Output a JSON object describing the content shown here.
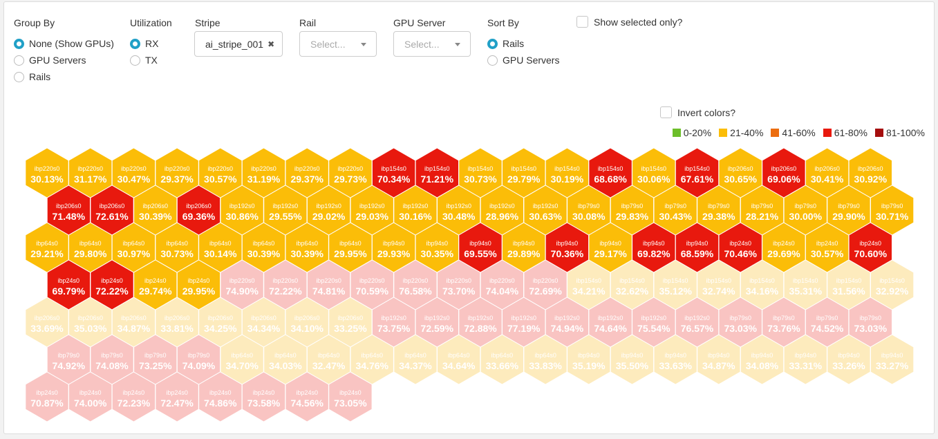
{
  "controls": {
    "group_by": {
      "title": "Group By",
      "options": [
        "None (Show GPUs)",
        "GPU Servers",
        "Rails"
      ],
      "selected": "None (Show GPUs)"
    },
    "utilization": {
      "title": "Utilization",
      "options": [
        "RX",
        "TX"
      ],
      "selected": "RX"
    },
    "stripe": {
      "title": "Stripe",
      "value": "ai_stripe_001",
      "clear_icon": "close-icon"
    },
    "rail": {
      "title": "Rail",
      "placeholder": "Select..."
    },
    "gpu_server": {
      "title": "GPU Server",
      "placeholder": "Select..."
    },
    "sort_by": {
      "title": "Sort By",
      "options": [
        "Rails",
        "GPU Servers"
      ],
      "selected": "Rails"
    },
    "show_selected_only": {
      "label": "Show selected only?",
      "checked": false
    },
    "invert_colors": {
      "label": "Invert colors?",
      "checked": false
    }
  },
  "legend": [
    {
      "label": "0-20%",
      "color": "#6cbe2a"
    },
    {
      "label": "21-40%",
      "color": "#fbbd08"
    },
    {
      "label": "41-60%",
      "color": "#ec6d0f"
    },
    {
      "label": "61-80%",
      "color": "#e8190e"
    },
    {
      "label": "81-100%",
      "color": "#a50e0e"
    }
  ],
  "hexmap": {
    "rows": [
      {
        "offset": 0,
        "cells": [
          {
            "name": "ibp220s0",
            "value": "30.13%",
            "bucket": 1,
            "faded": false
          },
          {
            "name": "ibp220s0",
            "value": "31.17%",
            "bucket": 1,
            "faded": false
          },
          {
            "name": "ibp220s0",
            "value": "30.47%",
            "bucket": 1,
            "faded": false
          },
          {
            "name": "ibp220s0",
            "value": "29.37%",
            "bucket": 1,
            "faded": false
          },
          {
            "name": "ibp220s0",
            "value": "30.57%",
            "bucket": 1,
            "faded": false
          },
          {
            "name": "ibp220s0",
            "value": "31.19%",
            "bucket": 1,
            "faded": false
          },
          {
            "name": "ibp220s0",
            "value": "29.37%",
            "bucket": 1,
            "faded": false
          },
          {
            "name": "ibp220s0",
            "value": "29.73%",
            "bucket": 1,
            "faded": false
          },
          {
            "name": "ibp154s0",
            "value": "70.34%",
            "bucket": 3,
            "faded": false
          },
          {
            "name": "ibp154s0",
            "value": "71.21%",
            "bucket": 3,
            "faded": false
          },
          {
            "name": "ibp154s0",
            "value": "30.73%",
            "bucket": 1,
            "faded": false
          },
          {
            "name": "ibp154s0",
            "value": "29.79%",
            "bucket": 1,
            "faded": false
          },
          {
            "name": "ibp154s0",
            "value": "30.19%",
            "bucket": 1,
            "faded": false
          },
          {
            "name": "ibp154s0",
            "value": "68.68%",
            "bucket": 3,
            "faded": false
          },
          {
            "name": "ibp154s0",
            "value": "30.06%",
            "bucket": 1,
            "faded": false
          },
          {
            "name": "ibp154s0",
            "value": "67.61%",
            "bucket": 3,
            "faded": false
          },
          {
            "name": "ibp206s0",
            "value": "30.65%",
            "bucket": 1,
            "faded": false
          },
          {
            "name": "ibp206s0",
            "value": "69.06%",
            "bucket": 3,
            "faded": false
          },
          {
            "name": "ibp206s0",
            "value": "30.41%",
            "bucket": 1,
            "faded": false
          },
          {
            "name": "ibp206s0",
            "value": "30.92%",
            "bucket": 1,
            "faded": false
          }
        ]
      },
      {
        "offset": 1,
        "cells": [
          {
            "name": "ibp206s0",
            "value": "71.48%",
            "bucket": 3,
            "faded": false
          },
          {
            "name": "ibp206s0",
            "value": "72.61%",
            "bucket": 3,
            "faded": false
          },
          {
            "name": "ibp206s0",
            "value": "30.39%",
            "bucket": 1,
            "faded": false
          },
          {
            "name": "ibp206s0",
            "value": "69.36%",
            "bucket": 3,
            "faded": false
          },
          {
            "name": "ibp192s0",
            "value": "30.86%",
            "bucket": 1,
            "faded": false
          },
          {
            "name": "ibp192s0",
            "value": "29.55%",
            "bucket": 1,
            "faded": false
          },
          {
            "name": "ibp192s0",
            "value": "29.02%",
            "bucket": 1,
            "faded": false
          },
          {
            "name": "ibp192s0",
            "value": "29.03%",
            "bucket": 1,
            "faded": false
          },
          {
            "name": "ibp192s0",
            "value": "30.16%",
            "bucket": 1,
            "faded": false
          },
          {
            "name": "ibp192s0",
            "value": "30.48%",
            "bucket": 1,
            "faded": false
          },
          {
            "name": "ibp192s0",
            "value": "28.96%",
            "bucket": 1,
            "faded": false
          },
          {
            "name": "ibp192s0",
            "value": "30.63%",
            "bucket": 1,
            "faded": false
          },
          {
            "name": "ibp79s0",
            "value": "30.08%",
            "bucket": 1,
            "faded": false
          },
          {
            "name": "ibp79s0",
            "value": "29.83%",
            "bucket": 1,
            "faded": false
          },
          {
            "name": "ibp79s0",
            "value": "30.43%",
            "bucket": 1,
            "faded": false
          },
          {
            "name": "ibp79s0",
            "value": "29.38%",
            "bucket": 1,
            "faded": false
          },
          {
            "name": "ibp79s0",
            "value": "28.21%",
            "bucket": 1,
            "faded": false
          },
          {
            "name": "ibp79s0",
            "value": "30.00%",
            "bucket": 1,
            "faded": false
          },
          {
            "name": "ibp79s0",
            "value": "29.90%",
            "bucket": 1,
            "faded": false
          },
          {
            "name": "ibp79s0",
            "value": "30.71%",
            "bucket": 1,
            "faded": false
          }
        ]
      },
      {
        "offset": 0,
        "cells": [
          {
            "name": "ibp64s0",
            "value": "29.21%",
            "bucket": 1,
            "faded": false
          },
          {
            "name": "ibp64s0",
            "value": "29.80%",
            "bucket": 1,
            "faded": false
          },
          {
            "name": "ibp64s0",
            "value": "30.97%",
            "bucket": 1,
            "faded": false
          },
          {
            "name": "ibp64s0",
            "value": "30.73%",
            "bucket": 1,
            "faded": false
          },
          {
            "name": "ibp64s0",
            "value": "30.14%",
            "bucket": 1,
            "faded": false
          },
          {
            "name": "ibp64s0",
            "value": "30.39%",
            "bucket": 1,
            "faded": false
          },
          {
            "name": "ibp64s0",
            "value": "30.39%",
            "bucket": 1,
            "faded": false
          },
          {
            "name": "ibp64s0",
            "value": "29.95%",
            "bucket": 1,
            "faded": false
          },
          {
            "name": "ibp94s0",
            "value": "29.93%",
            "bucket": 1,
            "faded": false
          },
          {
            "name": "ibp94s0",
            "value": "30.35%",
            "bucket": 1,
            "faded": false
          },
          {
            "name": "ibp94s0",
            "value": "69.55%",
            "bucket": 3,
            "faded": false
          },
          {
            "name": "ibp94s0",
            "value": "29.89%",
            "bucket": 1,
            "faded": false
          },
          {
            "name": "ibp94s0",
            "value": "70.36%",
            "bucket": 3,
            "faded": false
          },
          {
            "name": "ibp94s0",
            "value": "29.17%",
            "bucket": 1,
            "faded": false
          },
          {
            "name": "ibp94s0",
            "value": "69.82%",
            "bucket": 3,
            "faded": false
          },
          {
            "name": "ibp94s0",
            "value": "68.59%",
            "bucket": 3,
            "faded": false
          },
          {
            "name": "ibp24s0",
            "value": "70.46%",
            "bucket": 3,
            "faded": false
          },
          {
            "name": "ibp24s0",
            "value": "29.69%",
            "bucket": 1,
            "faded": false
          },
          {
            "name": "ibp24s0",
            "value": "30.57%",
            "bucket": 1,
            "faded": false
          },
          {
            "name": "ibp24s0",
            "value": "70.60%",
            "bucket": 3,
            "faded": false
          }
        ]
      },
      {
        "offset": 1,
        "cells": [
          {
            "name": "ibp24s0",
            "value": "69.79%",
            "bucket": 3,
            "faded": false
          },
          {
            "name": "ibp24s0",
            "value": "72.22%",
            "bucket": 3,
            "faded": false
          },
          {
            "name": "ibp24s0",
            "value": "29.74%",
            "bucket": 1,
            "faded": false
          },
          {
            "name": "ibp24s0",
            "value": "29.95%",
            "bucket": 1,
            "faded": false
          },
          {
            "name": "ibp220s0",
            "value": "74.90%",
            "bucket": 3,
            "faded": true
          },
          {
            "name": "ibp220s0",
            "value": "72.22%",
            "bucket": 3,
            "faded": true
          },
          {
            "name": "ibp220s0",
            "value": "74.81%",
            "bucket": 3,
            "faded": true
          },
          {
            "name": "ibp220s0",
            "value": "70.59%",
            "bucket": 3,
            "faded": true
          },
          {
            "name": "ibp220s0",
            "value": "76.58%",
            "bucket": 3,
            "faded": true
          },
          {
            "name": "ibp220s0",
            "value": "73.70%",
            "bucket": 3,
            "faded": true
          },
          {
            "name": "ibp220s0",
            "value": "74.04%",
            "bucket": 3,
            "faded": true
          },
          {
            "name": "ibp220s0",
            "value": "72.69%",
            "bucket": 3,
            "faded": true
          },
          {
            "name": "ibp154s0",
            "value": "34.21%",
            "bucket": 1,
            "faded": true
          },
          {
            "name": "ibp154s0",
            "value": "32.62%",
            "bucket": 1,
            "faded": true
          },
          {
            "name": "ibp154s0",
            "value": "35.12%",
            "bucket": 1,
            "faded": true
          },
          {
            "name": "ibp154s0",
            "value": "32.74%",
            "bucket": 1,
            "faded": true
          },
          {
            "name": "ibp154s0",
            "value": "34.16%",
            "bucket": 1,
            "faded": true
          },
          {
            "name": "ibp154s0",
            "value": "35.31%",
            "bucket": 1,
            "faded": true
          },
          {
            "name": "ibp154s0",
            "value": "31.56%",
            "bucket": 1,
            "faded": true
          },
          {
            "name": "ibp154s0",
            "value": "32.92%",
            "bucket": 1,
            "faded": true
          }
        ]
      },
      {
        "offset": 0,
        "cells": [
          {
            "name": "ibp206s0",
            "value": "33.69%",
            "bucket": 1,
            "faded": true
          },
          {
            "name": "ibp206s0",
            "value": "35.03%",
            "bucket": 1,
            "faded": true
          },
          {
            "name": "ibp206s0",
            "value": "34.87%",
            "bucket": 1,
            "faded": true
          },
          {
            "name": "ibp206s0",
            "value": "33.81%",
            "bucket": 1,
            "faded": true
          },
          {
            "name": "ibp206s0",
            "value": "34.25%",
            "bucket": 1,
            "faded": true
          },
          {
            "name": "ibp206s0",
            "value": "34.34%",
            "bucket": 1,
            "faded": true
          },
          {
            "name": "ibp206s0",
            "value": "34.10%",
            "bucket": 1,
            "faded": true
          },
          {
            "name": "ibp206s0",
            "value": "33.25%",
            "bucket": 1,
            "faded": true
          },
          {
            "name": "ibp192s0",
            "value": "73.75%",
            "bucket": 3,
            "faded": true
          },
          {
            "name": "ibp192s0",
            "value": "72.59%",
            "bucket": 3,
            "faded": true
          },
          {
            "name": "ibp192s0",
            "value": "72.88%",
            "bucket": 3,
            "faded": true
          },
          {
            "name": "ibp192s0",
            "value": "77.19%",
            "bucket": 3,
            "faded": true
          },
          {
            "name": "ibp192s0",
            "value": "74.94%",
            "bucket": 3,
            "faded": true
          },
          {
            "name": "ibp192s0",
            "value": "74.64%",
            "bucket": 3,
            "faded": true
          },
          {
            "name": "ibp192s0",
            "value": "75.54%",
            "bucket": 3,
            "faded": true
          },
          {
            "name": "ibp192s0",
            "value": "76.57%",
            "bucket": 3,
            "faded": true
          },
          {
            "name": "ibp79s0",
            "value": "73.03%",
            "bucket": 3,
            "faded": true
          },
          {
            "name": "ibp79s0",
            "value": "73.76%",
            "bucket": 3,
            "faded": true
          },
          {
            "name": "ibp79s0",
            "value": "74.52%",
            "bucket": 3,
            "faded": true
          },
          {
            "name": "ibp79s0",
            "value": "73.03%",
            "bucket": 3,
            "faded": true
          }
        ]
      },
      {
        "offset": 1,
        "cells": [
          {
            "name": "ibp79s0",
            "value": "74.92%",
            "bucket": 3,
            "faded": true
          },
          {
            "name": "ibp79s0",
            "value": "74.08%",
            "bucket": 3,
            "faded": true
          },
          {
            "name": "ibp79s0",
            "value": "73.25%",
            "bucket": 3,
            "faded": true
          },
          {
            "name": "ibp79s0",
            "value": "74.09%",
            "bucket": 3,
            "faded": true
          },
          {
            "name": "ibp64s0",
            "value": "34.70%",
            "bucket": 1,
            "faded": true
          },
          {
            "name": "ibp64s0",
            "value": "34.03%",
            "bucket": 1,
            "faded": true
          },
          {
            "name": "ibp64s0",
            "value": "32.47%",
            "bucket": 1,
            "faded": true
          },
          {
            "name": "ibp64s0",
            "value": "34.76%",
            "bucket": 1,
            "faded": true
          },
          {
            "name": "ibp64s0",
            "value": "34.37%",
            "bucket": 1,
            "faded": true
          },
          {
            "name": "ibp64s0",
            "value": "34.64%",
            "bucket": 1,
            "faded": true
          },
          {
            "name": "ibp64s0",
            "value": "33.66%",
            "bucket": 1,
            "faded": true
          },
          {
            "name": "ibp64s0",
            "value": "33.83%",
            "bucket": 1,
            "faded": true
          },
          {
            "name": "ibp94s0",
            "value": "35.19%",
            "bucket": 1,
            "faded": true
          },
          {
            "name": "ibp94s0",
            "value": "35.50%",
            "bucket": 1,
            "faded": true
          },
          {
            "name": "ibp94s0",
            "value": "33.63%",
            "bucket": 1,
            "faded": true
          },
          {
            "name": "ibp94s0",
            "value": "34.87%",
            "bucket": 1,
            "faded": true
          },
          {
            "name": "ibp94s0",
            "value": "34.08%",
            "bucket": 1,
            "faded": true
          },
          {
            "name": "ibp94s0",
            "value": "33.31%",
            "bucket": 1,
            "faded": true
          },
          {
            "name": "ibp94s0",
            "value": "33.26%",
            "bucket": 1,
            "faded": true
          },
          {
            "name": "ibp94s0",
            "value": "33.27%",
            "bucket": 1,
            "faded": true
          }
        ]
      },
      {
        "offset": 0,
        "cells": [
          {
            "name": "ibp24s0",
            "value": "70.87%",
            "bucket": 3,
            "faded": true
          },
          {
            "name": "ibp24s0",
            "value": "74.00%",
            "bucket": 3,
            "faded": true
          },
          {
            "name": "ibp24s0",
            "value": "72.23%",
            "bucket": 3,
            "faded": true
          },
          {
            "name": "ibp24s0",
            "value": "72.47%",
            "bucket": 3,
            "faded": true
          },
          {
            "name": "ibp24s0",
            "value": "74.86%",
            "bucket": 3,
            "faded": true
          },
          {
            "name": "ibp24s0",
            "value": "73.58%",
            "bucket": 3,
            "faded": true
          },
          {
            "name": "ibp24s0",
            "value": "74.56%",
            "bucket": 3,
            "faded": true
          },
          {
            "name": "ibp24s0",
            "value": "73.05%",
            "bucket": 3,
            "faded": true
          }
        ]
      }
    ]
  }
}
